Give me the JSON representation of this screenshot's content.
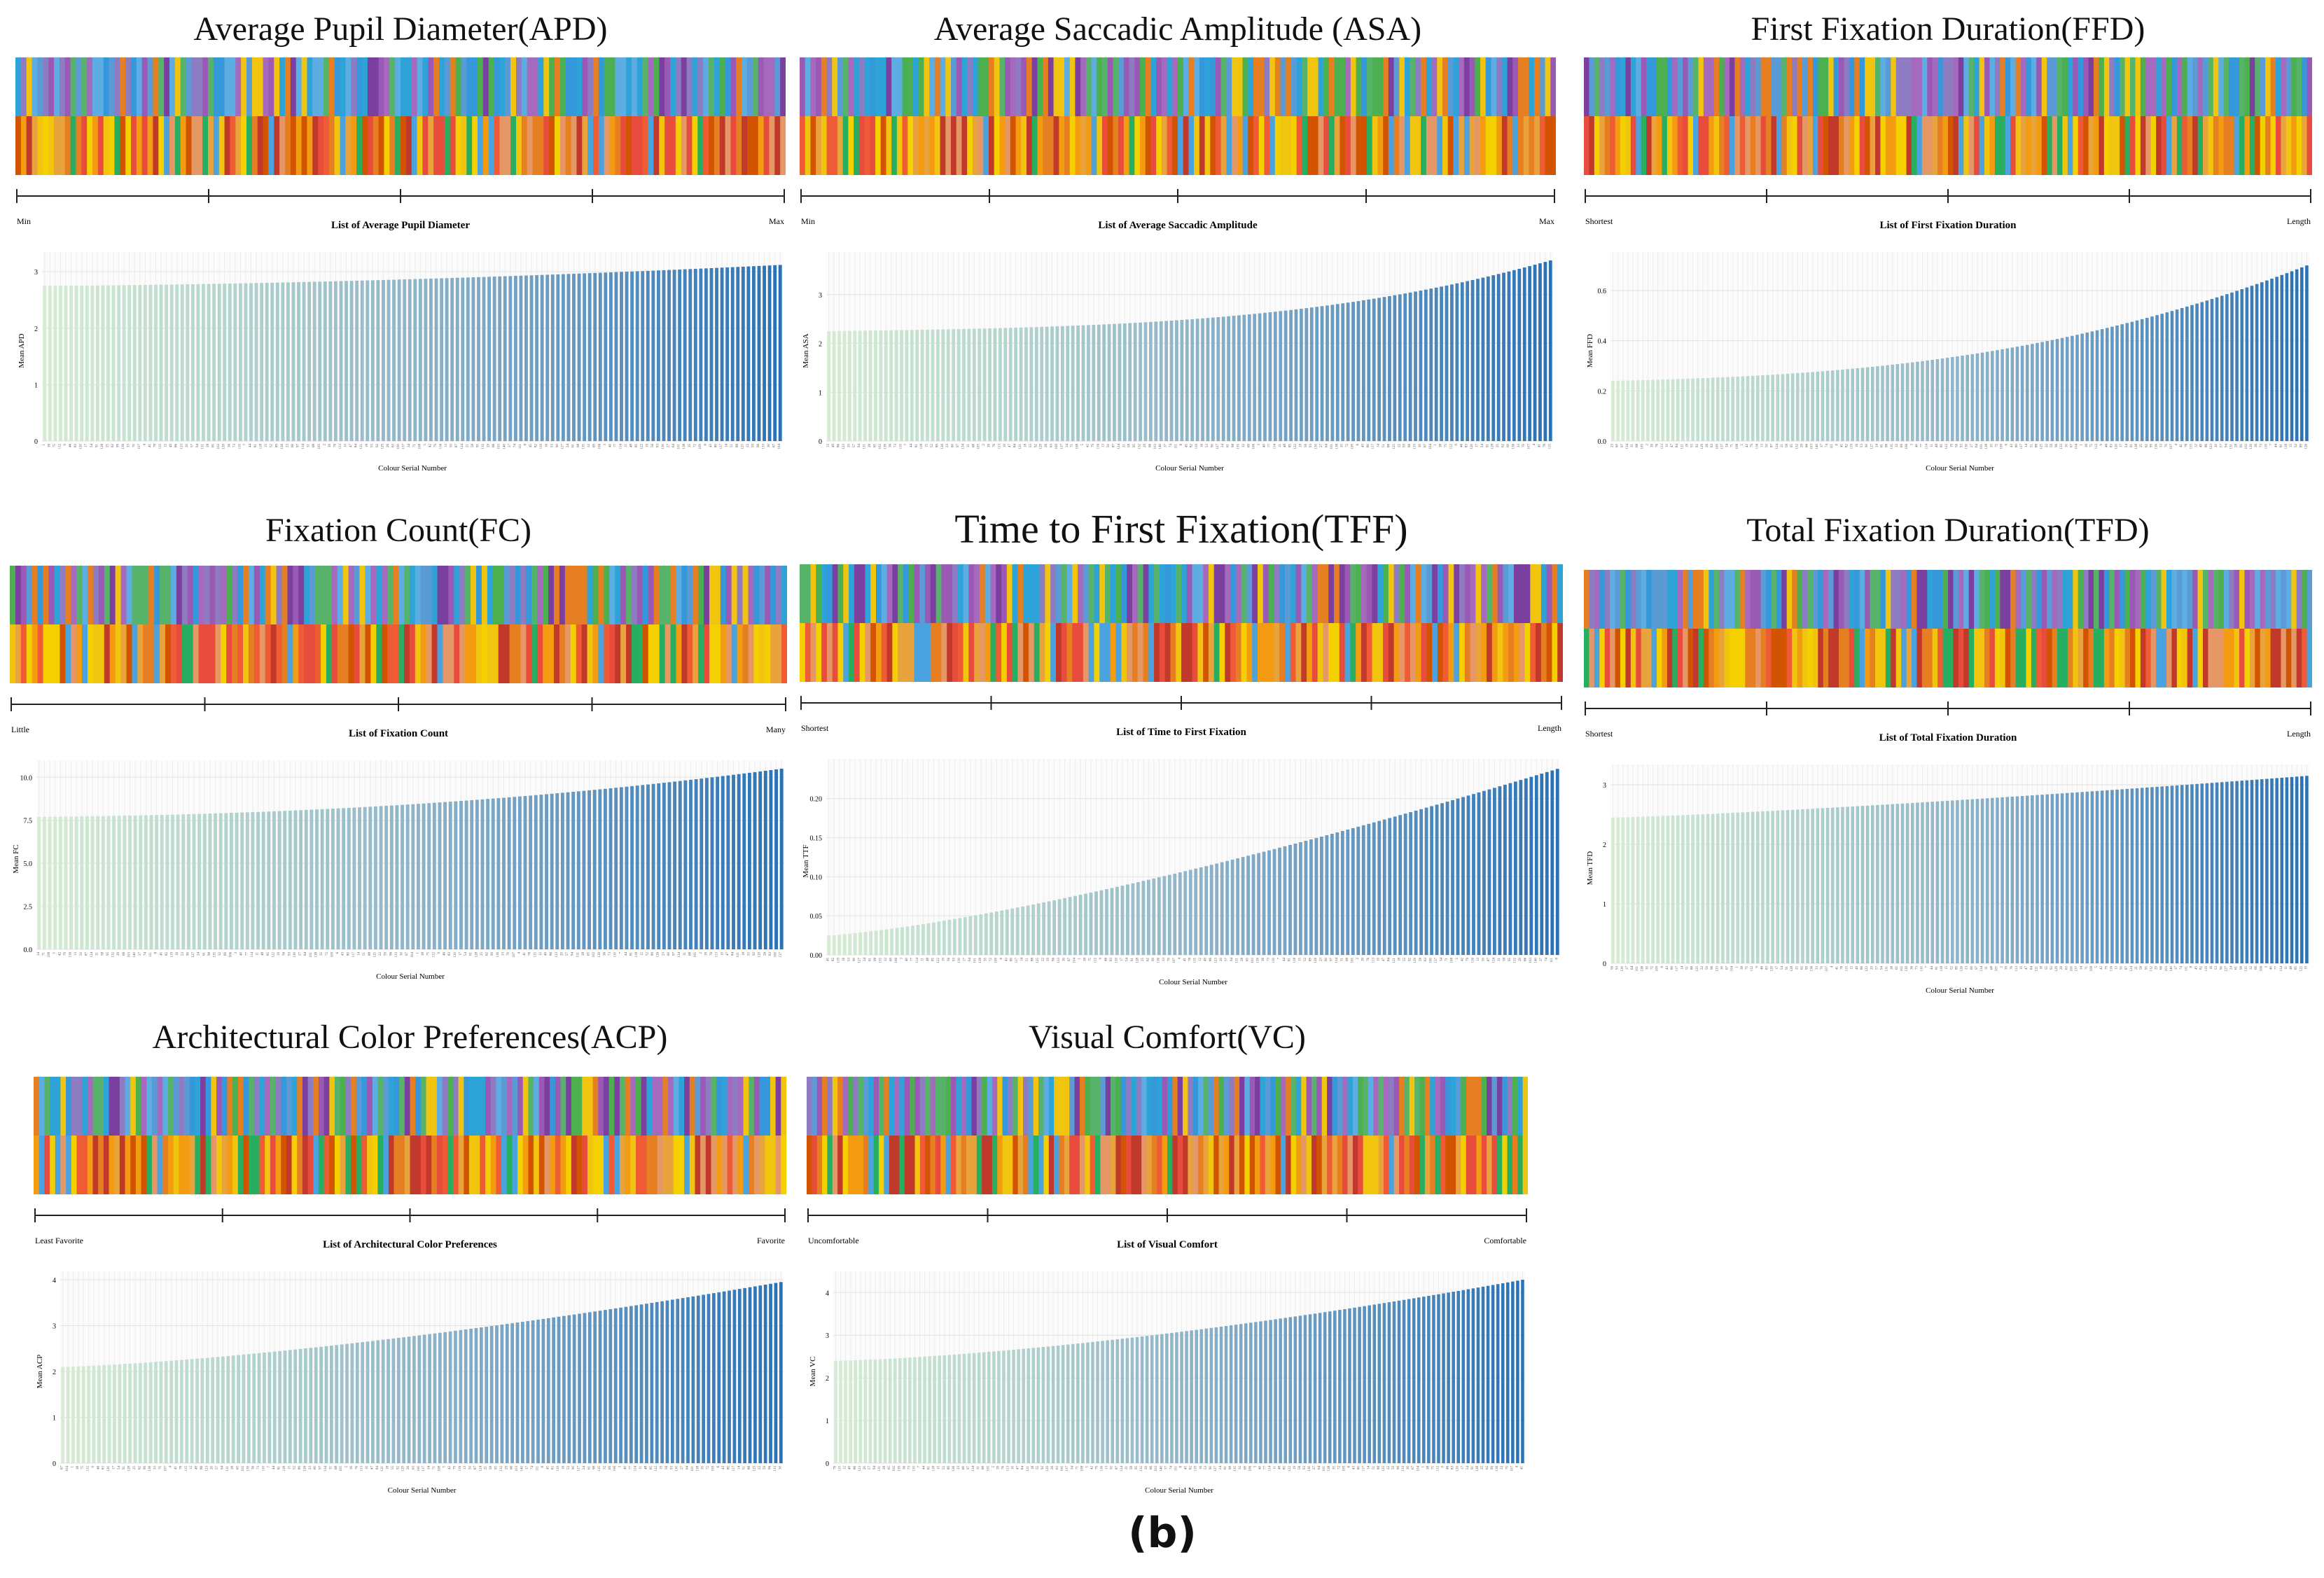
{
  "figure_label": "(b)",
  "chart_data": [
    {
      "id": "apd",
      "type": "bar",
      "title": "Average Pupil Diameter(APD)",
      "scale_left": "Min",
      "scale_right": "Max",
      "list_label": "List of Average Pupil Diameter",
      "ylabel": "Mean APD",
      "xlabel": "Colour Serial Number",
      "yticks": [
        "0",
        "1",
        "2",
        "3"
      ],
      "ylim": [
        0,
        3.2
      ],
      "n_bars": 140,
      "value_range": [
        2.75,
        3.12
      ],
      "curve": 1.8
    },
    {
      "id": "asa",
      "type": "bar",
      "title": "Average Saccadic Amplitude (ASA)",
      "scale_left": "Min",
      "scale_right": "Max",
      "list_label": "List of Average Saccadic Amplitude",
      "ylabel": "Mean ASA",
      "xlabel": "Colour Serial Number",
      "yticks": [
        "0",
        "1",
        "2",
        "3"
      ],
      "ylim": [
        0,
        3.7
      ],
      "n_bars": 140,
      "value_range": [
        2.25,
        3.7
      ],
      "curve": 3.2
    },
    {
      "id": "ffd",
      "type": "bar",
      "title": "First Fixation Duration(FFD)",
      "scale_left": "Shortest",
      "scale_right": "Length",
      "list_label": "List of First Fixation Duration",
      "ylabel": "Mean FFD",
      "xlabel": "Colour Serial Number",
      "yticks": [
        "0.0",
        "0.2",
        "0.4",
        "0.6"
      ],
      "ylim": [
        0,
        0.72
      ],
      "n_bars": 140,
      "value_range": [
        0.24,
        0.7
      ],
      "curve": 2.6
    },
    {
      "id": "fc",
      "type": "bar",
      "title": "Fixation Count(FC)",
      "scale_left": "Little",
      "scale_right": "Many",
      "list_label": "List of Fixation Count",
      "ylabel": "Mean FC",
      "xlabel": "Colour Serial Number",
      "yticks": [
        "0.0",
        "2.5",
        "5.0",
        "7.5",
        "10.0"
      ],
      "ylim": [
        0,
        10.5
      ],
      "n_bars": 140,
      "value_range": [
        7.7,
        10.5
      ],
      "curve": 2.2
    },
    {
      "id": "tff",
      "type": "bar",
      "title": "Time to First Fixation(TFF)",
      "scale_left": "Shortest",
      "scale_right": "Length",
      "list_label": "List of Time to First Fixation",
      "ylabel": "Mean TTF",
      "xlabel": "Colour Serial Number",
      "yticks": [
        "0.00",
        "0.05",
        "0.10",
        "0.15",
        "0.20"
      ],
      "ylim": [
        0,
        0.24
      ],
      "n_bars": 140,
      "value_range": [
        0.025,
        0.238
      ],
      "curve": 1.4
    },
    {
      "id": "tfd",
      "type": "bar",
      "title": "Total Fixation Duration(TFD)",
      "scale_left": "Shortest",
      "scale_right": "Length",
      "list_label": "List of Total Fixation Duration",
      "ylabel": "Mean TFD",
      "xlabel": "Colour Serial Number",
      "yticks": [
        "0",
        "1",
        "2",
        "3"
      ],
      "ylim": [
        0,
        3.2
      ],
      "n_bars": 140,
      "value_range": [
        2.45,
        3.15
      ],
      "curve": 1.3
    },
    {
      "id": "acp",
      "type": "bar",
      "title": "Architectural Color Preferences(ACP)",
      "scale_left": "Least Favorite",
      "scale_right": "Favorite",
      "list_label": "List of Architectural Color Preferences",
      "ylabel": "Mean ACP",
      "xlabel": "Colour Serial Number",
      "yticks": [
        "0",
        "1",
        "2",
        "3",
        "4"
      ],
      "ylim": [
        0,
        4
      ],
      "n_bars": 140,
      "value_range": [
        2.1,
        3.95
      ],
      "curve": 1.5
    },
    {
      "id": "vc",
      "type": "bar",
      "title": "Visual Comfort(VC)",
      "scale_left": "Uncomfortable",
      "scale_right": "Comfortable",
      "list_label": "List of Visual Comfort",
      "ylabel": "Mean VC",
      "xlabel": "Colour Serial Number",
      "yticks": [
        "0",
        "1",
        "2",
        "3",
        "4"
      ],
      "ylim": [
        0,
        4.3
      ],
      "n_bars": 140,
      "value_range": [
        2.4,
        4.3
      ],
      "curve": 1.6
    }
  ]
}
